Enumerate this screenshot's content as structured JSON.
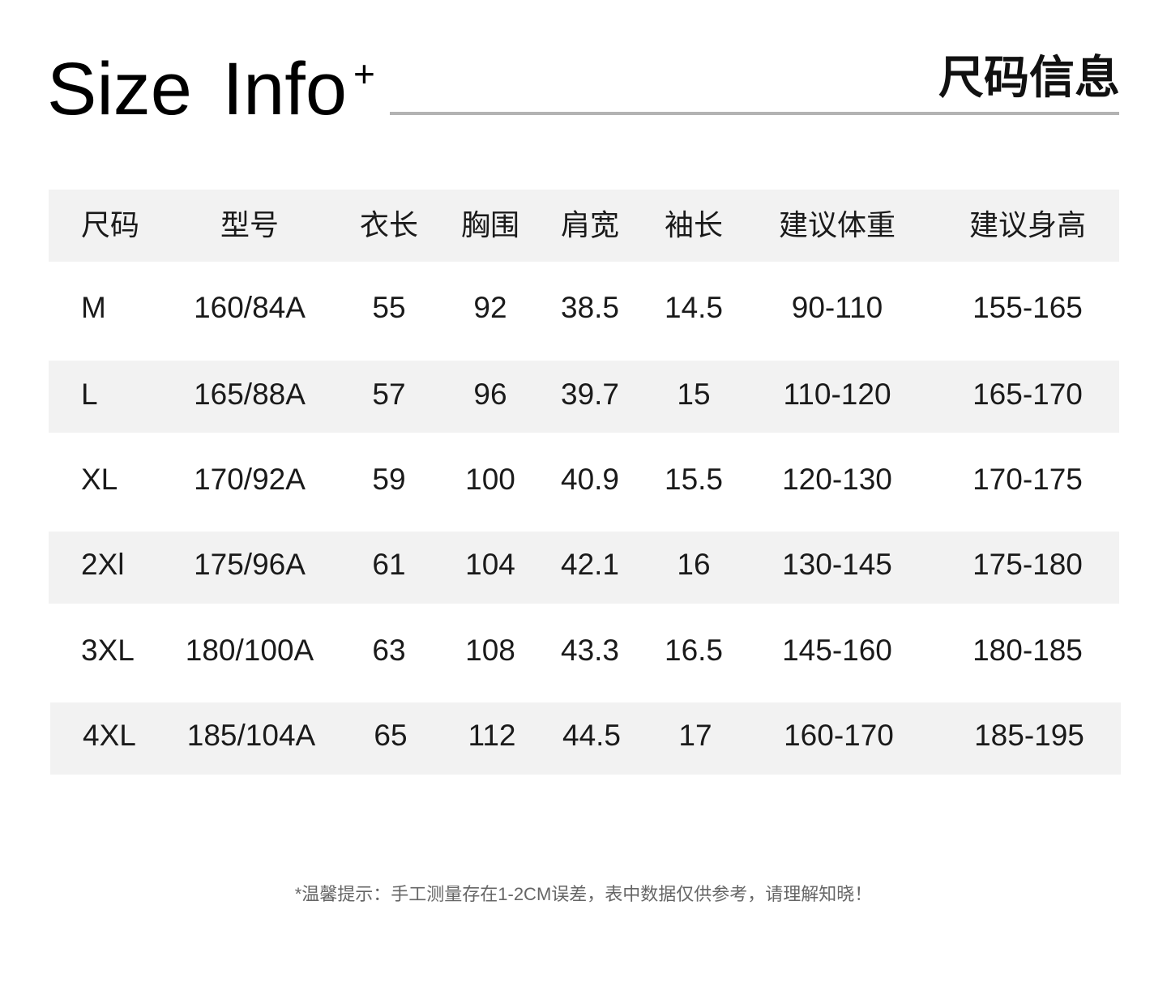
{
  "header": {
    "title_en": "Size Info",
    "plus": "+",
    "title_cn": "尺码信息"
  },
  "table": {
    "columns": [
      "尺码",
      "型号",
      "衣长",
      "胸围",
      "肩宽",
      "袖长",
      "建议体重",
      "建议身高"
    ],
    "rows": [
      [
        "M",
        "160/84A",
        "55",
        "92",
        "38.5",
        "14.5",
        "90-110",
        "155-165"
      ],
      [
        "L",
        "165/88A",
        "57",
        "96",
        "39.7",
        "15",
        "110-120",
        "165-170"
      ],
      [
        "XL",
        "170/92A",
        "59",
        "100",
        "40.9",
        "15.5",
        "120-130",
        "170-175"
      ],
      [
        "2Xl",
        "175/96A",
        "61",
        "104",
        "42.1",
        "16",
        "130-145",
        "175-180"
      ],
      [
        "3XL",
        "180/100A",
        "63",
        "108",
        "43.3",
        "16.5",
        "145-160",
        "180-185"
      ],
      [
        "4XL",
        "185/104A",
        "65",
        "112",
        "44.5",
        "17",
        "160-170",
        "185-195"
      ]
    ]
  },
  "note": "*温馨提示：手工测量存在1-2CM误差，表中数据仅供参考，请理解知晓！",
  "colors": {
    "stripe": "#f2f2f2",
    "rule": "#b3b3b3"
  }
}
